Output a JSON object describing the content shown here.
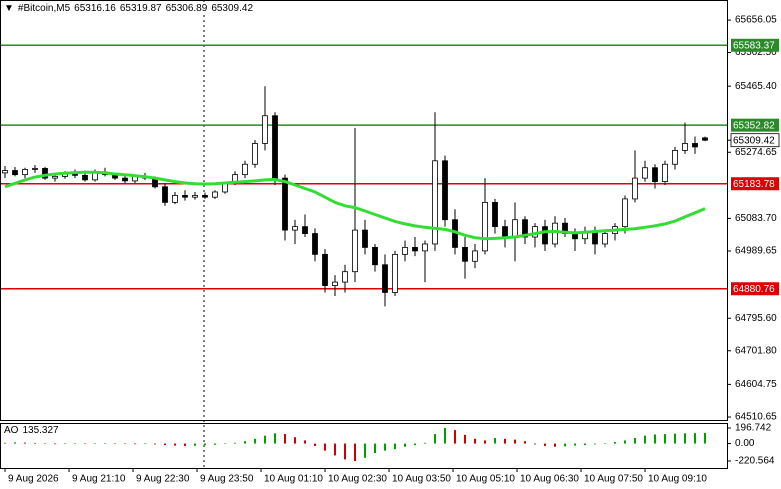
{
  "chart_data": {
    "type": "candlestick",
    "title": "#Bitcoin,M5",
    "header_values": [
      65316.16,
      65319.87,
      65306.89,
      65309.42
    ],
    "x": [
      0,
      1,
      2,
      3,
      4,
      5,
      6,
      7,
      8,
      9,
      10,
      11,
      12,
      13,
      14,
      15,
      16,
      17,
      18,
      19,
      20,
      21,
      22,
      23,
      24,
      25,
      26,
      27,
      28,
      29,
      30,
      31,
      32,
      33,
      34,
      35,
      36,
      37,
      38,
      39,
      40,
      41,
      42,
      43,
      44,
      45,
      46,
      47,
      48,
      49,
      50,
      51,
      52,
      53,
      54,
      55,
      56,
      57,
      58,
      59,
      60,
      61,
      62,
      63,
      64,
      65,
      66,
      67,
      68,
      69,
      70
    ],
    "open": [
      65215,
      65222,
      65210,
      65225,
      65228,
      65200,
      65205,
      65212,
      65208,
      65195,
      65218,
      65210,
      65200,
      65192,
      65205,
      65200,
      65175,
      65130,
      65150,
      65145,
      65150,
      65145,
      65160,
      65185,
      65210,
      65240,
      65300,
      65380,
      65200,
      65050,
      65060,
      65040,
      64980,
      64890,
      64900,
      64930,
      65050,
      65000,
      64950,
      64870,
      64980,
      65000,
      64990,
      65010,
      65250,
      65080,
      65000,
      64960,
      64990,
      65130,
      65060,
      65030,
      65080,
      65030,
      65060,
      65010,
      65070,
      65040,
      65025,
      65045,
      65010,
      65040,
      65060,
      65140,
      65200,
      65230,
      65190,
      65240,
      65280,
      65300,
      65316.16
    ],
    "high": [
      65235,
      65232,
      65230,
      65238,
      65232,
      65215,
      65220,
      65225,
      65222,
      65225,
      65230,
      65215,
      65212,
      65210,
      65215,
      65205,
      65185,
      65160,
      65165,
      65160,
      65158,
      65165,
      65190,
      65220,
      65250,
      65310,
      65465,
      65390,
      65210,
      65080,
      65095,
      65055,
      64995,
      64920,
      64950,
      65345,
      65080,
      65010,
      64980,
      64990,
      65020,
      65030,
      65020,
      65390,
      65265,
      65110,
      65030,
      65010,
      65200,
      65140,
      65080,
      65130,
      65090,
      65070,
      65080,
      65090,
      65085,
      65055,
      65060,
      65060,
      65050,
      65070,
      65150,
      65280,
      65250,
      65240,
      65250,
      65290,
      65360,
      65320,
      65319.87
    ],
    "low": [
      65200,
      65205,
      65200,
      65215,
      65195,
      65190,
      65198,
      65200,
      65190,
      65190,
      65205,
      65195,
      65185,
      65185,
      65195,
      65170,
      65120,
      65125,
      65135,
      65138,
      65140,
      65140,
      65155,
      65180,
      65200,
      65230,
      65280,
      65180,
      65020,
      65010,
      65030,
      64960,
      64870,
      64860,
      64870,
      64900,
      64980,
      64930,
      64830,
      64860,
      64960,
      64975,
      64900,
      64990,
      65060,
      64980,
      64910,
      64940,
      64980,
      65040,
      65000,
      64960,
      65010,
      65000,
      64990,
      65000,
      65030,
      64990,
      65010,
      64980,
      65000,
      65020,
      65040,
      65130,
      65190,
      65170,
      65180,
      65225,
      65270,
      65270,
      65306.89
    ],
    "close": [
      65222,
      65210,
      65225,
      65228,
      65200,
      65205,
      65212,
      65208,
      65195,
      65218,
      65210,
      65200,
      65192,
      65205,
      65200,
      65175,
      65130,
      65150,
      65145,
      65150,
      65145,
      65160,
      65185,
      65210,
      65240,
      65300,
      65380,
      65200,
      65050,
      65060,
      65040,
      64980,
      64890,
      64900,
      64930,
      65050,
      65000,
      64950,
      64870,
      64980,
      65000,
      64990,
      65010,
      65250,
      65080,
      65000,
      64960,
      64990,
      65130,
      65060,
      65030,
      65080,
      65030,
      65060,
      65010,
      65070,
      65040,
      65025,
      65045,
      65010,
      65040,
      65060,
      65140,
      65200,
      65230,
      65190,
      65240,
      65280,
      65300,
      65290,
      65309.42
    ],
    "up_color": "#ffffff",
    "down_color": "#000000",
    "ma": {
      "color": "#33dd33",
      "values": [
        65175,
        65185,
        65195,
        65203,
        65208,
        65212,
        65214,
        65216,
        65217,
        65217,
        65215,
        65212,
        65210,
        65207,
        65204,
        65200,
        65195,
        65190,
        65186,
        65184,
        65183,
        65184,
        65186,
        65188,
        65190,
        65192,
        65195,
        65196,
        65190,
        65180,
        65170,
        65160,
        65145,
        65130,
        65120,
        65115,
        65105,
        65095,
        65085,
        65075,
        65068,
        65062,
        65058,
        65055,
        65052,
        65045,
        65035,
        65028,
        65025,
        65026,
        65028,
        65030,
        65035,
        65040,
        65045,
        65046,
        65044,
        65042,
        65044,
        65046,
        65048,
        65050,
        65052,
        65054,
        65058,
        65062,
        65068,
        65076,
        65088,
        65100,
        65112
      ]
    },
    "levels": [
      {
        "value": 65583.37,
        "color": "#2a8a2a"
      },
      {
        "value": 65352.82,
        "color": "#2a8a2a"
      },
      {
        "value": 65183.78,
        "color": "#dd0000"
      },
      {
        "value": 64880.76,
        "color": "#dd0000"
      }
    ],
    "last_price": 65309.42,
    "xlim": [
      -0.5,
      72.2
    ],
    "xticks": [
      {
        "value": 0,
        "label": "9 Aug 2026"
      },
      {
        "value": 6.4,
        "label": "9 Aug 21:10"
      },
      {
        "value": 12.8,
        "label": "9 Aug 22:30"
      },
      {
        "value": 19.2,
        "label": "9 Aug 23:50"
      },
      {
        "value": 25.6,
        "label": "10 Aug 01:10"
      },
      {
        "value": 32,
        "label": "10 Aug 02:30"
      },
      {
        "value": 38.4,
        "label": "10 Aug 03:50"
      },
      {
        "value": 44.8,
        "label": "10 Aug 05:10"
      },
      {
        "value": 51.2,
        "label": "10 Aug 06:30"
      },
      {
        "value": 57.6,
        "label": "10 Aug 07:50"
      },
      {
        "value": 64,
        "label": "10 Aug 09:10"
      }
    ],
    "ylim": [
      64502,
      65714
    ],
    "yticks": [
      65656.05,
      {
        "value": 65562.5,
        "label": "65562.50"
      },
      {
        "value": 65465.4,
        "label": "65465.40"
      },
      65274.65,
      {
        "value": 65083.7,
        "label": "65083.70"
      },
      64989.65,
      {
        "value": 64795.6,
        "label": "64795.60"
      },
      {
        "value": 64701.8,
        "label": "64701.80"
      },
      64604.75,
      64510.65
    ],
    "indicator": {
      "type": "bar",
      "name": "AO",
      "value": 135.327,
      "up_color": "#00a000",
      "down_color": "#d00000",
      "values": [
        10,
        15,
        12,
        8,
        -5,
        -8,
        -3,
        2,
        -6,
        -4,
        3,
        -2,
        -5,
        -8,
        -6,
        -10,
        -20,
        -25,
        -30,
        -28,
        -22,
        -15,
        -5,
        10,
        30,
        60,
        100,
        130,
        120,
        80,
        40,
        -30,
        -90,
        -150,
        -200,
        -220,
        -180,
        -120,
        -90,
        -70,
        -40,
        -20,
        10,
        120,
        196,
        170,
        110,
        60,
        40,
        70,
        60,
        50,
        30,
        -10,
        -30,
        -40,
        -35,
        -25,
        -20,
        -10,
        5,
        20,
        40,
        70,
        100,
        115,
        120,
        125,
        130,
        132,
        135.327
      ],
      "ylim": [
        -309,
        260
      ],
      "yticks": [
        196.742,
        {
          "value": 0,
          "label": "0.00"
        },
        -220.564
      ]
    }
  }
}
